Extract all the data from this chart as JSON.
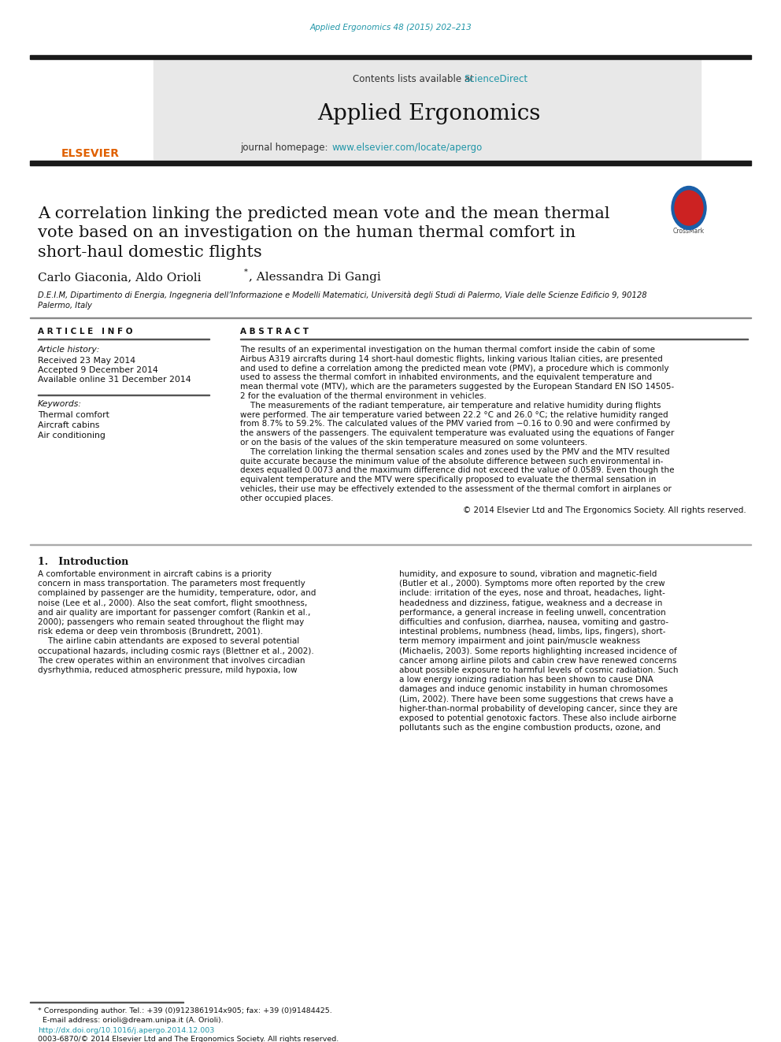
{
  "page_bg": "#ffffff",
  "header_url_color": "#2196a8",
  "header_url_text": "Applied Ergonomics 48 (2015) 202–213",
  "journal_name": "Applied Ergonomics",
  "contents_text": "Contents lists available at ",
  "sciencedirect_text": "ScienceDirect",
  "homepage_text": "journal homepage: ",
  "homepage_url": "www.elsevier.com/locate/apergo",
  "header_bg": "#e8e8e8",
  "black_bar_color": "#1a1a1a",
  "article_title": "A correlation linking the predicted mean vote and the mean thermal\nvote based on an investigation on the human thermal comfort in\nshort-haul domestic flights",
  "authors_part1": "Carlo Giaconia, Aldo Orioli",
  "authors_part2": ", Alessandra Di Gangi",
  "affiliation1": "D.E.I.M, Dipartimento di Energia, Ingegneria dell’Informazione e Modelli Matematici, Università degli Studi di Palermo, Viale delle Scienze Edificio 9, 90128",
  "affiliation2": "Palermo, Italy",
  "article_info_header": "A R T I C L E   I N F O",
  "abstract_header": "A B S T R A C T",
  "article_history_label": "Article history:",
  "received": "Received 23 May 2014",
  "accepted": "Accepted 9 December 2014",
  "available": "Available online 31 December 2014",
  "keywords_label": "Keywords:",
  "keywords": [
    "Thermal comfort",
    "Aircraft cabins",
    "Air conditioning"
  ],
  "abstract_lines": [
    "The results of an experimental investigation on the human thermal comfort inside the cabin of some",
    "Airbus A319 aircrafts during 14 short-haul domestic flights, linking various Italian cities, are presented",
    "and used to define a correlation among the predicted mean vote (PMV), a procedure which is commonly",
    "used to assess the thermal comfort in inhabited environments, and the equivalent temperature and",
    "mean thermal vote (MTV), which are the parameters suggested by the European Standard EN ISO 14505-",
    "2 for the evaluation of the thermal environment in vehicles.",
    "    The measurements of the radiant temperature, air temperature and relative humidity during flights",
    "were performed. The air temperature varied between 22.2 °C and 26.0 °C; the relative humidity ranged",
    "from 8.7% to 59.2%. The calculated values of the PMV varied from −0.16 to 0.90 and were confirmed by",
    "the answers of the passengers. The equivalent temperature was evaluated using the equations of Fanger",
    "or on the basis of the values of the skin temperature measured on some volunteers.",
    "    The correlation linking the thermal sensation scales and zones used by the PMV and the MTV resulted",
    "quite accurate because the minimum value of the absolute difference between such environmental in-",
    "dexes equalled 0.0073 and the maximum difference did not exceed the value of 0.0589. Even though the",
    "equivalent temperature and the MTV were specifically proposed to evaluate the thermal sensation in",
    "vehicles, their use may be effectively extended to the assessment of the thermal comfort in airplanes or",
    "other occupied places."
  ],
  "copyright": "© 2014 Elsevier Ltd and The Ergonomics Society. All rights reserved.",
  "intro_header": "1.   Introduction",
  "intro_col1_lines": [
    "A comfortable environment in aircraft cabins is a priority",
    "concern in mass transportation. The parameters most frequently",
    "complained by passenger are the humidity, temperature, odor, and",
    "noise (Lee et al., 2000). Also the seat comfort, flight smoothness,",
    "and air quality are important for passenger comfort (Rankin et al.,",
    "2000); passengers who remain seated throughout the flight may",
    "risk edema or deep vein thrombosis (Brundrett, 2001).",
    "    The airline cabin attendants are exposed to several potential",
    "occupational hazards, including cosmic rays (Blettner et al., 2002).",
    "The crew operates within an environment that involves circadian",
    "dysrhythmia, reduced atmospheric pressure, mild hypoxia, low"
  ],
  "intro_col2_lines": [
    "humidity, and exposure to sound, vibration and magnetic-field",
    "(Butler et al., 2000). Symptoms more often reported by the crew",
    "include: irritation of the eyes, nose and throat, headaches, light-",
    "headedness and dizziness, fatigue, weakness and a decrease in",
    "performance, a general increase in feeling unwell, concentration",
    "difficulties and confusion, diarrhea, nausea, vomiting and gastro-",
    "intestinal problems, numbness (head, limbs, lips, fingers), short-",
    "term memory impairment and joint pain/muscle weakness",
    "(Michaelis, 2003). Some reports highlighting increased incidence of",
    "cancer among airline pilots and cabin crew have renewed concerns",
    "about possible exposure to harmful levels of cosmic radiation. Such",
    "a low energy ionizing radiation has been shown to cause DNA",
    "damages and induce genomic instability in human chromosomes",
    "(Lim, 2002). There have been some suggestions that crews have a",
    "higher-than-normal probability of developing cancer, since they are",
    "exposed to potential genotoxic factors. These also include airborne",
    "pollutants such as the engine combustion products, ozone, and"
  ],
  "footnote1": "* Corresponding author. Tel.: +39 (0)9123861914x905; fax: +39 (0)91484425.",
  "footnote2": "  E-mail address: orioli@dream.unipa.it (A. Orioli).",
  "doi_text": "http://dx.doi.org/10.1016/j.apergo.2014.12.003",
  "issn_text": "0003-6870/© 2014 Elsevier Ltd and The Ergonomics Society. All rights reserved."
}
